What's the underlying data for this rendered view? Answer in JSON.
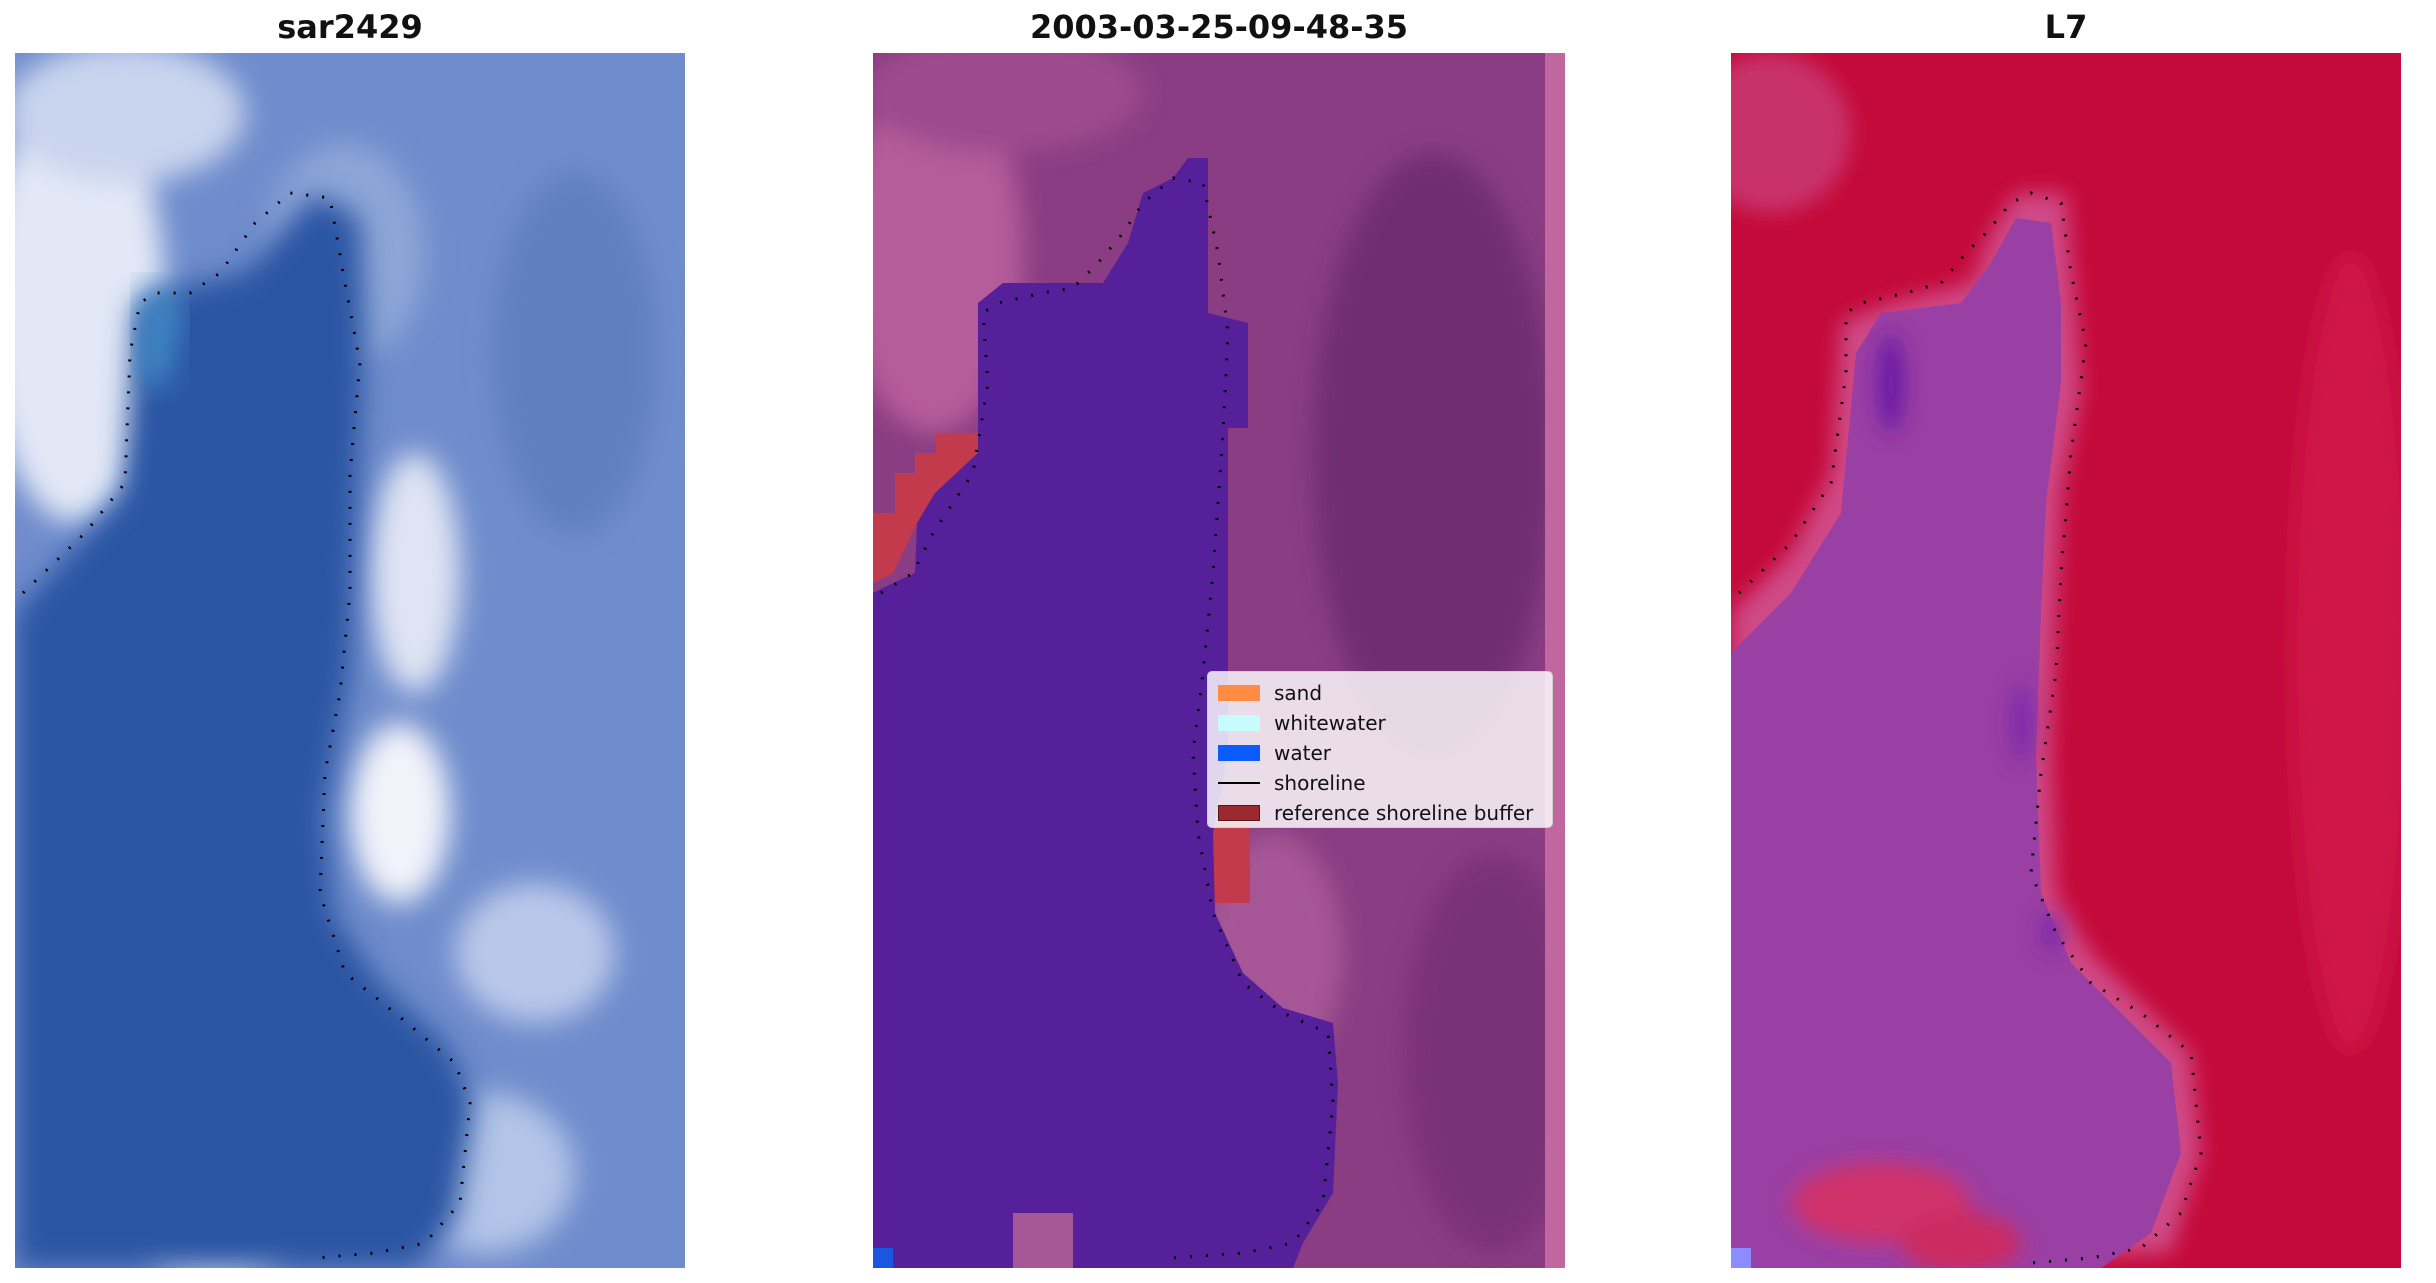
{
  "panels": [
    {
      "title": "sar2429"
    },
    {
      "title": "2003-03-25-09-48-35"
    },
    {
      "title": "L7"
    }
  ],
  "legend": {
    "items": [
      {
        "label": "sand",
        "color": "#ff8c42"
      },
      {
        "label": "whitewater",
        "color": "#c8fbfb"
      },
      {
        "label": "water",
        "color": "#0a5cff"
      },
      {
        "label": "shoreline",
        "color": "#000000"
      },
      {
        "label": "reference shoreline buffer",
        "color": "#9b2a2f"
      }
    ]
  },
  "colors": {
    "rgb_water": "#2b55a3",
    "rgb_land": "#6f8ccc",
    "rgb_foam": "#dfe6f5",
    "class_water_blob": "#56209a",
    "class_background": "#8a3d82",
    "class_edge_strip": "#c0679f",
    "class_buffer": "#c23a4b",
    "mndwi_land": "#c40a3a",
    "mndwi_water": "#9a3fa3"
  }
}
